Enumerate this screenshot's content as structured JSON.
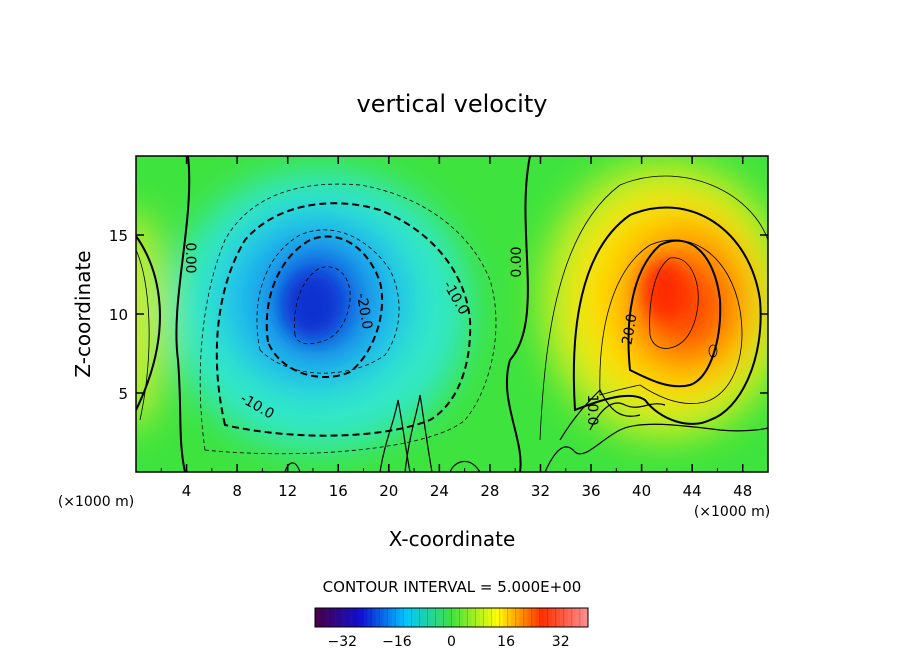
{
  "chart_data": {
    "type": "heatmap",
    "title": "vertical velocity",
    "xlabel": "X-coordinate",
    "ylabel": "Z-coordinate",
    "x_unit_label": "(×1000 m)",
    "z_unit_label": "(×1000 m)",
    "xlim": [
      0,
      50
    ],
    "ylim": [
      0,
      20
    ],
    "x_ticks": [
      4,
      8,
      12,
      16,
      20,
      24,
      28,
      32,
      36,
      40,
      44,
      48
    ],
    "y_ticks": [
      5,
      10,
      15
    ],
    "contour_interval_label": "CONTOUR INTERVAL = 5.000E+00",
    "contour_interval": 5.0,
    "contour_labels": [
      {
        "text": "0.00",
        "x": 4.3,
        "z": 13.5
      },
      {
        "text": "0.00",
        "x": 30.5,
        "z": 13.5
      },
      {
        "text": "-20.0",
        "x": 18.0,
        "z": 10.5
      },
      {
        "text": "-10.0",
        "x": 25.5,
        "z": 11.0
      },
      {
        "text": "-10.0",
        "x": 10.0,
        "z": 4.0
      },
      {
        "text": "20.0",
        "x": 39.0,
        "z": 9.0
      },
      {
        "text": "10.0",
        "x": 35.5,
        "z": 4.0
      }
    ],
    "features": [
      {
        "kind": "downdraft",
        "x": 14.5,
        "z": 11.0,
        "peak": -30
      },
      {
        "kind": "updraft",
        "x": 42.0,
        "z": 11.0,
        "peak": 32
      },
      {
        "kind": "updraft",
        "x": 0.5,
        "z": 9.0,
        "peak": 10
      }
    ],
    "colorbar": {
      "min": -40,
      "max": 40,
      "tick_values": [
        -32,
        -16,
        0,
        16,
        32
      ],
      "tick_labels": [
        "−32",
        "−16",
        "0",
        "16",
        "32"
      ]
    },
    "grid": false,
    "colormap": [
      "#4a004a",
      "#1010d0",
      "#00c8ff",
      "#40e040",
      "#ffff00",
      "#ff3000",
      "#ff9090"
    ]
  }
}
